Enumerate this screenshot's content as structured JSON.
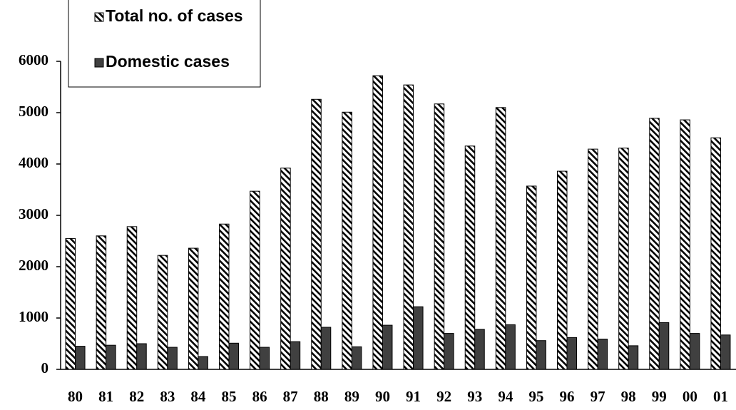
{
  "chart_data": {
    "type": "bar",
    "categories": [
      "80",
      "81",
      "82",
      "83",
      "84",
      "85",
      "86",
      "87",
      "88",
      "89",
      "90",
      "91",
      "92",
      "93",
      "94",
      "95",
      "96",
      "97",
      "98",
      "99",
      "00",
      "01"
    ],
    "series": [
      {
        "name": "Total no. of cases",
        "color": "#000000",
        "hatch": true,
        "values": [
          2550,
          2600,
          2780,
          2220,
          2360,
          2830,
          3470,
          3920,
          5260,
          5010,
          5720,
          5540,
          5170,
          4350,
          5100,
          3570,
          3860,
          4290,
          4310,
          4890,
          4860,
          4510
        ]
      },
      {
        "name": "Domestic cases",
        "color": "#404040",
        "hatch": false,
        "values": [
          450,
          470,
          500,
          430,
          250,
          510,
          430,
          540,
          820,
          440,
          860,
          1220,
          700,
          780,
          870,
          560,
          620,
          590,
          460,
          910,
          700,
          670
        ]
      }
    ],
    "ylim": [
      0,
      6000
    ],
    "yticks": [
      0,
      1000,
      2000,
      3000,
      4000,
      5000,
      6000
    ],
    "grid": false,
    "legend": "top-left"
  }
}
